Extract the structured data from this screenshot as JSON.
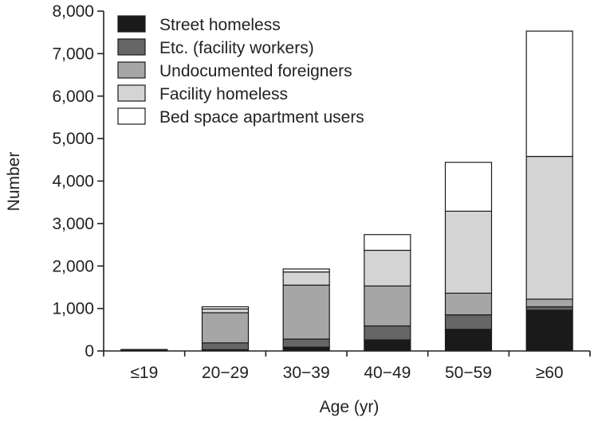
{
  "chart_data": {
    "type": "bar",
    "stacked": true,
    "title": "",
    "xlabel": "Age (yr)",
    "ylabel": "Number",
    "ylim": [
      0,
      8000
    ],
    "yticks": [
      0,
      1000,
      2000,
      3000,
      4000,
      5000,
      6000,
      7000,
      8000
    ],
    "ytick_labels": [
      "0",
      "1,000",
      "2,000",
      "3,000",
      "4,000",
      "5,000",
      "6,000",
      "7,000",
      "8,000"
    ],
    "categories": [
      "≤19",
      "20−29",
      "30−39",
      "40−49",
      "50−59",
      "≥60"
    ],
    "legend_position": "top-left",
    "series": [
      {
        "name": "Street homeless",
        "color": "#1a1a1a",
        "values": [
          10,
          30,
          90,
          260,
          510,
          960
        ]
      },
      {
        "name": "Etc. (facility workers)",
        "color": "#666666",
        "values": [
          5,
          160,
          190,
          330,
          340,
          80
        ]
      },
      {
        "name": "Undocumented foreigners",
        "color": "#a6a6a6",
        "values": [
          5,
          710,
          1270,
          940,
          510,
          180
        ]
      },
      {
        "name": "Facility homeless",
        "color": "#d4d4d4",
        "values": [
          10,
          90,
          310,
          840,
          1930,
          3360
        ]
      },
      {
        "name": "Bed space apartment users",
        "color": "#ffffff",
        "values": [
          5,
          50,
          70,
          370,
          1150,
          2950
        ]
      }
    ]
  }
}
